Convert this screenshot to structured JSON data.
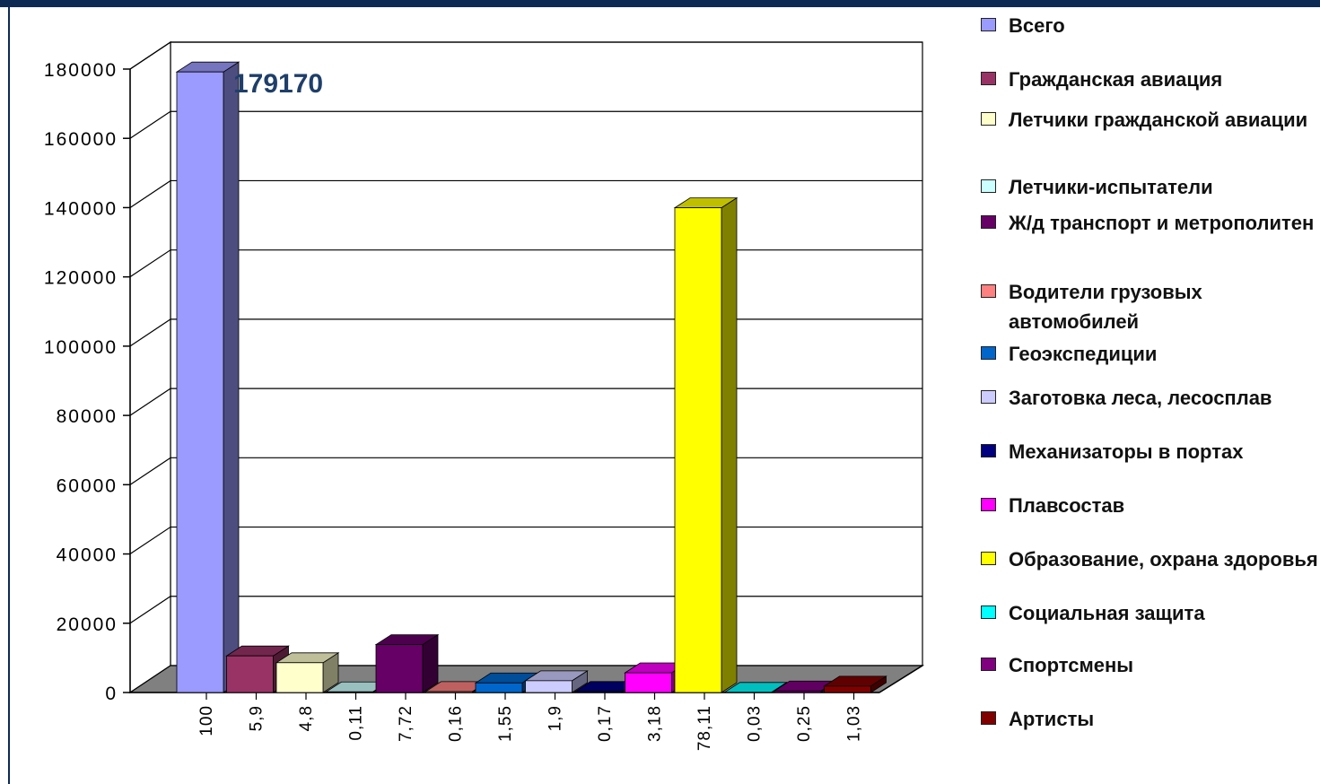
{
  "chart_data": {
    "type": "bar",
    "style": "3d",
    "categories": [
      "100",
      "5,9",
      "4,8",
      "0,11",
      "7,72",
      "0,16",
      "1,55",
      "1,9",
      "0,17",
      "3,18",
      "78,11",
      "0,03",
      "0,25",
      "1,03"
    ],
    "values": [
      179170,
      10571,
      8600,
      197,
      13832,
      287,
      2777,
      3404,
      305,
      5698,
      139949,
      54,
      448,
      1845
    ],
    "value_label": "179170",
    "ylim": [
      0,
      180000
    ],
    "yticks": [
      "0",
      "20000",
      "40000",
      "60000",
      "80000",
      "100000",
      "120000",
      "140000",
      "160000",
      "180000"
    ],
    "grid": true,
    "legend_position": "right",
    "legend": [
      {
        "label": "Всего",
        "color": "#9a9aff"
      },
      {
        "label": "Гражданская авиация",
        "color": "#993366"
      },
      {
        "label": "Летчики гражданской авиации",
        "color": "#ffffcc"
      },
      {
        "label": "Летчики-испытатели",
        "color": "#ccffff"
      },
      {
        "label": "Ж/д транспорт и метрополитен",
        "color": "#660066"
      },
      {
        "label": "Водители грузовых автомобилей",
        "color": "#ff8080"
      },
      {
        "label": "Геоэкспедиции",
        "color": "#0066cc"
      },
      {
        "label": "Заготовка леса, лесосплав",
        "color": "#ccccff"
      },
      {
        "label": "Механизаторы в портах",
        "color": "#000080"
      },
      {
        "label": "Плавсостав",
        "color": "#ff00ff"
      },
      {
        "label": "Образование, охрана здоровья",
        "color": "#ffff00"
      },
      {
        "label": "Социальная защита",
        "color": "#00ffff"
      },
      {
        "label": "Спортсмены",
        "color": "#800080"
      },
      {
        "label": "Артисты",
        "color": "#800000"
      }
    ]
  }
}
